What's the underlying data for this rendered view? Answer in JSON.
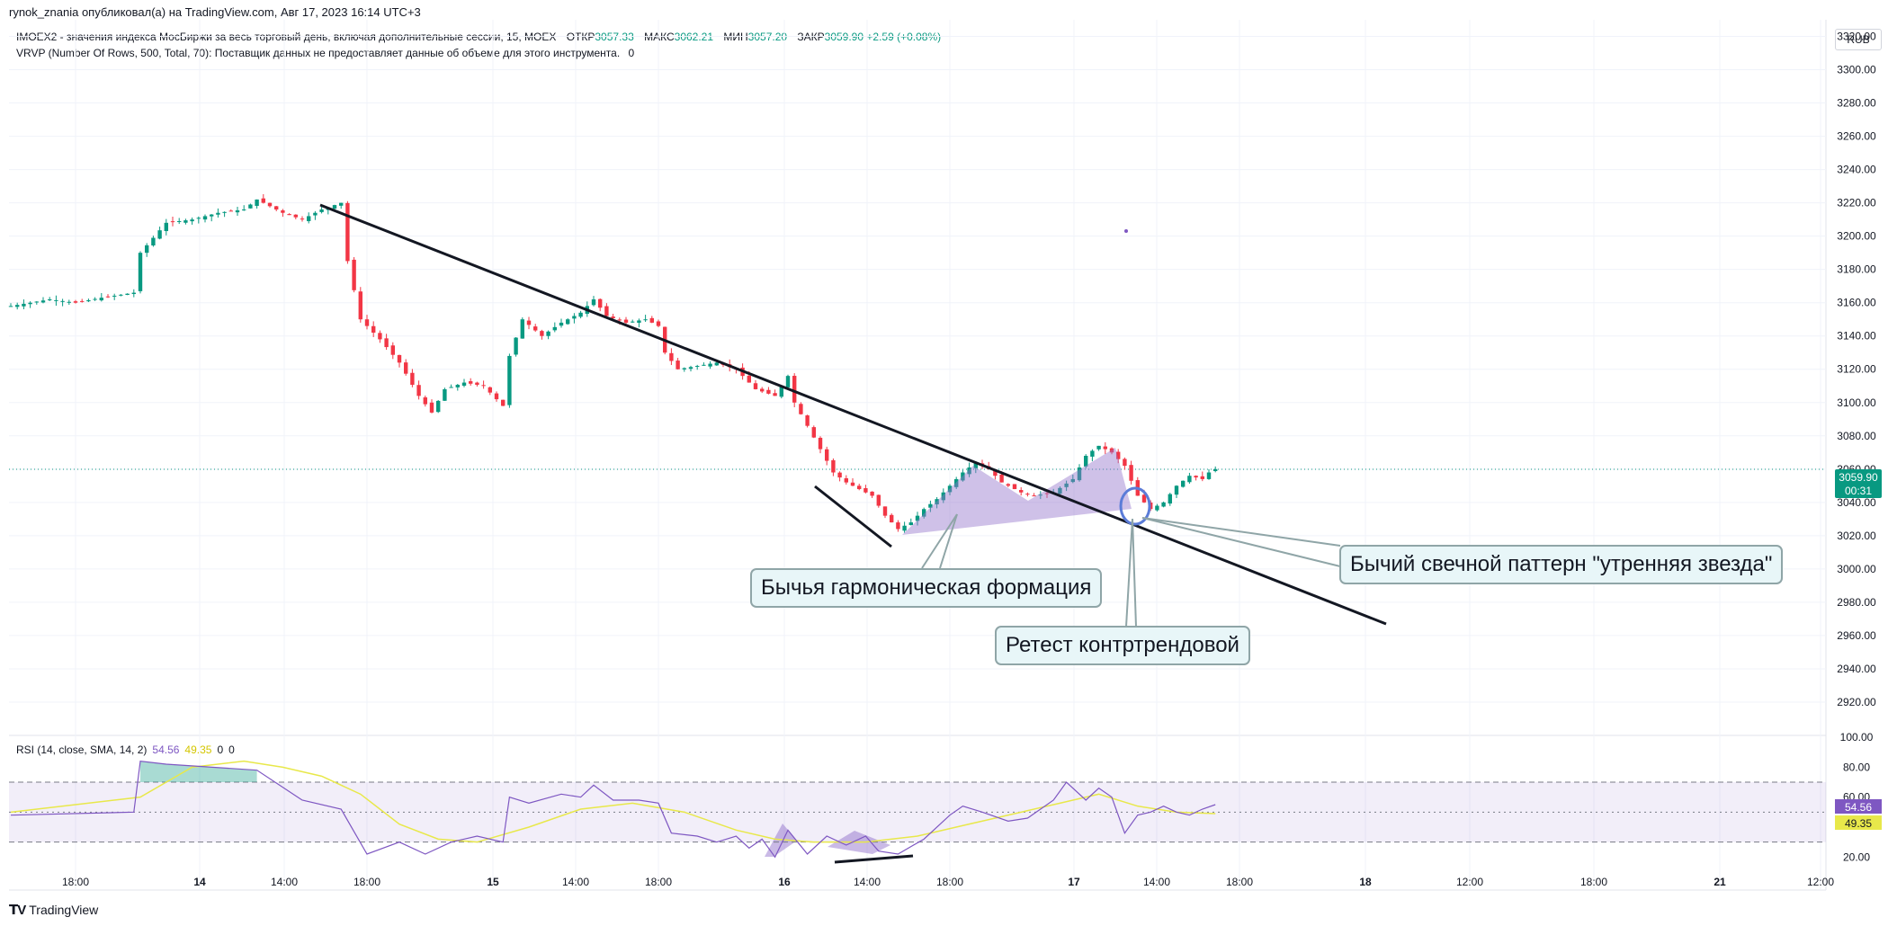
{
  "header": {
    "publisher_line": "rynok_znania опубликовал(а) на TradingView.com, Авг 17, 2023 16:14 UTC+3",
    "symbol_line": "IMOEX2 - значения индекса МосБиржи за весь торговый день, включая дополнительные сессии, 15, MOEX",
    "ohlc": [
      {
        "label": "ОТКР",
        "value": "3057.33"
      },
      {
        "label": "МАКС",
        "value": "3062.21"
      },
      {
        "label": "МИН",
        "value": "3057.20"
      },
      {
        "label": "ЗАКР",
        "value": "3059.90"
      }
    ],
    "change": "+2.59 (+0.08%)",
    "vrvp_line": "VRVP (Number Of Rows, 500, Total, 70): Поставщик данных не предоставляет данные об объеме для этого инструмента.",
    "vrvp_zero": "0"
  },
  "currency": "RUB",
  "price_badge": {
    "price": "3059.90",
    "timer": "00:31"
  },
  "rsi_legend": {
    "label": "RSI (14, close, SMA, 14, 2)",
    "rsi": "54.56",
    "sma": "49.35",
    "z1": "0",
    "z2": "0"
  },
  "rsi_badges": {
    "rsi": "54.56",
    "sma": "49.35"
  },
  "annotations": {
    "harmonic": "Бычья гармоническая формация",
    "morning_star": "Бычий свечной паттерн \"утренняя звезда\"",
    "retest": "Ретест контртрендовой"
  },
  "footer": {
    "logo": "TradingView"
  },
  "colors": {
    "up": "#089981",
    "down": "#f23645",
    "rsi": "#7e57c2",
    "sma": "#e8e84a",
    "trend": "#131722",
    "pattern": "#9575cd"
  },
  "chart_data": {
    "type": "candlestick",
    "interval": "15",
    "ylim": [
      2900,
      3330
    ],
    "y_ticks": [
      "3320.00",
      "3300.00",
      "3280.00",
      "3260.00",
      "3240.00",
      "3220.00",
      "3200.00",
      "3180.00",
      "3160.00",
      "3140.00",
      "3120.00",
      "3100.00",
      "3080.00",
      "3060.00",
      "3040.00",
      "3020.00",
      "3000.00",
      "2980.00",
      "2960.00",
      "2940.00",
      "2920.00"
    ],
    "x_ticks": [
      "18:00",
      "14",
      "14:00",
      "18:00",
      "15",
      "14:00",
      "18:00",
      "16",
      "14:00",
      "18:00",
      "17",
      "14:00",
      "18:00",
      "18",
      "12:00",
      "18:00",
      "21",
      "12:00"
    ],
    "last_price": 3059.9,
    "price_path": [
      [
        0,
        3158
      ],
      [
        6,
        3162
      ],
      [
        10,
        3160
      ],
      [
        14,
        3163
      ],
      [
        19,
        3166
      ],
      [
        20,
        3190
      ],
      [
        24,
        3208
      ],
      [
        28,
        3210
      ],
      [
        32,
        3214
      ],
      [
        36,
        3216
      ],
      [
        38,
        3222
      ],
      [
        42,
        3214
      ],
      [
        45,
        3210
      ],
      [
        48,
        3216
      ],
      [
        51,
        3220
      ],
      [
        52,
        3185
      ],
      [
        54,
        3150
      ],
      [
        57,
        3138
      ],
      [
        60,
        3124
      ],
      [
        63,
        3104
      ],
      [
        65,
        3094
      ],
      [
        67,
        3108
      ],
      [
        70,
        3112
      ],
      [
        73,
        3110
      ],
      [
        76,
        3098
      ],
      [
        77,
        3128
      ],
      [
        79,
        3150
      ],
      [
        82,
        3140
      ],
      [
        85,
        3148
      ],
      [
        88,
        3154
      ],
      [
        90,
        3162
      ],
      [
        92,
        3152
      ],
      [
        95,
        3148
      ],
      [
        98,
        3150
      ],
      [
        100,
        3146
      ],
      [
        101,
        3130
      ],
      [
        103,
        3120
      ],
      [
        106,
        3122
      ],
      [
        109,
        3124
      ],
      [
        112,
        3120
      ],
      [
        115,
        3108
      ],
      [
        118,
        3104
      ],
      [
        120,
        3116
      ],
      [
        121,
        3100
      ],
      [
        123,
        3086
      ],
      [
        125,
        3072
      ],
      [
        127,
        3058
      ],
      [
        129,
        3052
      ],
      [
        131,
        3048
      ],
      [
        133,
        3044
      ],
      [
        135,
        3032
      ],
      [
        137,
        3024
      ],
      [
        139,
        3028
      ],
      [
        141,
        3036
      ],
      [
        143,
        3042
      ],
      [
        145,
        3050
      ],
      [
        147,
        3058
      ],
      [
        149,
        3064
      ],
      [
        151,
        3060
      ],
      [
        153,
        3052
      ],
      [
        156,
        3046
      ],
      [
        158,
        3044
      ],
      [
        161,
        3046
      ],
      [
        164,
        3054
      ],
      [
        166,
        3068
      ],
      [
        168,
        3074
      ],
      [
        170,
        3070
      ],
      [
        172,
        3062
      ],
      [
        174,
        3044
      ],
      [
        176,
        3036
      ],
      [
        178,
        3040
      ],
      [
        180,
        3050
      ],
      [
        182,
        3056
      ],
      [
        184,
        3054
      ],
      [
        185,
        3058
      ],
      [
        186,
        3060
      ]
    ],
    "series": [
      {
        "name": "RSI",
        "values": [
          [
            0,
            48
          ],
          [
            19,
            50
          ],
          [
            20,
            84
          ],
          [
            24,
            82
          ],
          [
            38,
            78
          ],
          [
            45,
            58
          ],
          [
            51,
            52
          ],
          [
            55,
            22
          ],
          [
            60,
            30
          ],
          [
            64,
            22
          ],
          [
            68,
            30
          ],
          [
            72,
            34
          ],
          [
            76,
            30
          ],
          [
            77,
            60
          ],
          [
            80,
            56
          ],
          [
            85,
            62
          ],
          [
            88,
            60
          ],
          [
            90,
            68
          ],
          [
            93,
            58
          ],
          [
            97,
            58
          ],
          [
            100,
            56
          ],
          [
            102,
            36
          ],
          [
            106,
            34
          ],
          [
            109,
            30
          ],
          [
            112,
            34
          ],
          [
            114,
            26
          ],
          [
            116,
            32
          ],
          [
            118,
            20
          ],
          [
            120,
            38
          ],
          [
            123,
            22
          ],
          [
            126,
            34
          ],
          [
            129,
            28
          ],
          [
            132,
            34
          ],
          [
            134,
            24
          ],
          [
            137,
            22
          ],
          [
            141,
            32
          ],
          [
            145,
            48
          ],
          [
            147,
            54
          ],
          [
            150,
            50
          ],
          [
            154,
            44
          ],
          [
            157,
            46
          ],
          [
            161,
            58
          ],
          [
            163,
            70
          ],
          [
            166,
            58
          ],
          [
            168,
            66
          ],
          [
            170,
            60
          ],
          [
            172,
            36
          ],
          [
            174,
            48
          ],
          [
            176,
            50
          ],
          [
            178,
            54
          ],
          [
            180,
            50
          ],
          [
            182,
            48
          ],
          [
            184,
            52
          ],
          [
            186,
            55
          ]
        ]
      },
      {
        "name": "SMA",
        "values": [
          [
            0,
            50
          ],
          [
            20,
            60
          ],
          [
            28,
            80
          ],
          [
            36,
            84
          ],
          [
            42,
            80
          ],
          [
            48,
            74
          ],
          [
            54,
            62
          ],
          [
            60,
            42
          ],
          [
            66,
            32
          ],
          [
            72,
            30
          ],
          [
            80,
            40
          ],
          [
            88,
            52
          ],
          [
            96,
            56
          ],
          [
            104,
            50
          ],
          [
            112,
            38
          ],
          [
            118,
            32
          ],
          [
            124,
            30
          ],
          [
            132,
            30
          ],
          [
            140,
            34
          ],
          [
            148,
            42
          ],
          [
            156,
            50
          ],
          [
            162,
            56
          ],
          [
            168,
            62
          ],
          [
            174,
            54
          ],
          [
            180,
            50
          ],
          [
            186,
            49
          ]
        ]
      }
    ],
    "rsi_ylim": [
      10,
      100
    ],
    "rsi_ticks": [
      "100.00",
      "80.00",
      "60.00",
      "20.00"
    ]
  }
}
